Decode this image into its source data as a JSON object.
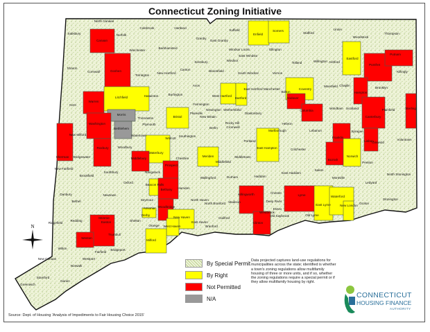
{
  "title": "Connecticut Zoning Initiative",
  "colors": {
    "special_permit": "#eef3d8",
    "by_right": "#ffff00",
    "not_permitted": "#ff0000",
    "na": "#999999",
    "border": "#4a5a4a"
  },
  "legend": [
    {
      "label": "By Special Permit",
      "status": "special_permit"
    },
    {
      "label": "By Right",
      "status": "by_right"
    },
    {
      "label": "Not Permitted",
      "status": "not_permitted"
    },
    {
      "label": "N/A",
      "status": "na"
    }
  ],
  "description": "Data projected captures land-use regulations for municipalities across the state; identified is whether a town's zoning regulations allow multifamily housing of three or more units, and if so, whether the zoning regulations require a special permit or if they allow multifamily housing by right.",
  "source": "Source: Dept. of Housing 'Analysis of Impediments to Fair Housing Choice 2015'",
  "compass_label": "N",
  "logo": {
    "line1": "CONNECTICUT",
    "line2": "HOUSING FINANCE",
    "line3": "AUTHORITY"
  },
  "towns": [
    [
      "North Canaan",
      "special_permit"
    ],
    [
      "Salisbury",
      "special_permit"
    ],
    [
      "Canaan",
      "not_permitted"
    ],
    [
      "Norfolk",
      "special_permit"
    ],
    [
      "Colebrook",
      "special_permit"
    ],
    [
      "Hartland",
      "special_permit"
    ],
    [
      "Suffield",
      "special_permit"
    ],
    [
      "Granby",
      "special_permit"
    ],
    [
      "East Granby",
      "special_permit"
    ],
    [
      "Windsor Locks",
      "special_permit"
    ],
    [
      "Enfield",
      "by_right"
    ],
    [
      "Somers",
      "by_right"
    ],
    [
      "Stafford",
      "special_permit"
    ],
    [
      "Union",
      "special_permit"
    ],
    [
      "Woodstock",
      "special_permit"
    ],
    [
      "Thompson",
      "special_permit"
    ],
    [
      "Sharon",
      "special_permit"
    ],
    [
      "Cornwall",
      "special_permit"
    ],
    [
      "Goshen",
      "not_permitted"
    ],
    [
      "Torrington",
      "special_permit"
    ],
    [
      "Winchester",
      "special_permit"
    ],
    [
      "Barkhamsted",
      "special_permit"
    ],
    [
      "New Hartford",
      "special_permit"
    ],
    [
      "Canton",
      "special_permit"
    ],
    [
      "Simsbury",
      "special_permit"
    ],
    [
      "Bloomfield",
      "special_permit"
    ],
    [
      "Windsor",
      "special_permit"
    ],
    [
      "East Windsor",
      "special_permit"
    ],
    [
      "Ellington",
      "special_permit"
    ],
    [
      "Tolland",
      "special_permit"
    ],
    [
      "Willington",
      "special_permit"
    ],
    [
      "Ashford",
      "special_permit"
    ],
    [
      "Eastford",
      "by_right"
    ],
    [
      "Pomfret",
      "not_permitted"
    ],
    [
      "Putnam",
      "not_permitted"
    ],
    [
      "Killingly",
      "special_permit"
    ],
    [
      "South Windsor",
      "special_permit"
    ],
    [
      "Vernon",
      "special_permit"
    ],
    [
      "Kent",
      "special_permit"
    ],
    [
      "Warren",
      "not_permitted"
    ],
    [
      "Litchfield",
      "by_right"
    ],
    [
      "Harwinton",
      "special_permit"
    ],
    [
      "Burlington",
      "special_permit"
    ],
    [
      "Avon",
      "special_permit"
    ],
    [
      "West Hartford",
      "by_right"
    ],
    [
      "Hartford",
      "by_right"
    ],
    [
      "East Hartford",
      "special_permit"
    ],
    [
      "Manchester",
      "special_permit"
    ],
    [
      "Bolton",
      "special_permit"
    ],
    [
      "Coventry",
      "by_right"
    ],
    [
      "Mansfield",
      "special_permit"
    ],
    [
      "Chaplin",
      "special_permit"
    ],
    [
      "Hampton",
      "not_permitted"
    ],
    [
      "Brooklyn",
      "special_permit"
    ],
    [
      "Farmington",
      "special_permit"
    ],
    [
      "Morris",
      "na"
    ],
    [
      "Washington",
      "not_permitted"
    ],
    [
      "Bethlehem",
      "na"
    ],
    [
      "Thomaston",
      "special_permit"
    ],
    [
      "Plymouth",
      "special_permit"
    ],
    [
      "Bristol",
      "by_right"
    ],
    [
      "Plainville",
      "special_permit"
    ],
    [
      "New Britain",
      "special_permit"
    ],
    [
      "Newington",
      "special_permit"
    ],
    [
      "Wethersfield",
      "special_permit"
    ],
    [
      "Rocky Hill",
      "special_permit"
    ],
    [
      "Glastonbury",
      "special_permit"
    ],
    [
      "Hebron",
      "special_permit"
    ],
    [
      "Andover",
      "not_permitted"
    ],
    [
      "Columbia",
      "not_permitted"
    ],
    [
      "Windham",
      "special_permit"
    ],
    [
      "Scotland",
      "special_permit"
    ],
    [
      "Canterbury",
      "not_permitted"
    ],
    [
      "Plainfield",
      "special_permit"
    ],
    [
      "Sterling",
      "not_permitted"
    ],
    [
      "New Milford",
      "special_permit"
    ],
    [
      "Sherman",
      "not_permitted"
    ],
    [
      "Roxbury",
      "not_permitted"
    ],
    [
      "Woodbury",
      "special_permit"
    ],
    [
      "Watertown",
      "special_permit"
    ],
    [
      "Wolcott",
      "special_permit"
    ],
    [
      "Southington",
      "special_permit"
    ],
    [
      "Berlin",
      "special_permit"
    ],
    [
      "Cromwell",
      "special_permit"
    ],
    [
      "Portland",
      "special_permit"
    ],
    [
      "East Hampton",
      "by_right"
    ],
    [
      "Marlborough",
      "special_permit"
    ],
    [
      "Lebanon",
      "special_permit"
    ],
    [
      "Franklin",
      "not_permitted"
    ],
    [
      "Sprague",
      "special_permit"
    ],
    [
      "Lisbon",
      "not_permitted"
    ],
    [
      "Griswold",
      "special_permit"
    ],
    [
      "Voluntown",
      "special_permit"
    ],
    [
      "Waterbury",
      "by_right"
    ],
    [
      "Middlebury",
      "not_permitted"
    ],
    [
      "Bridgewater",
      "special_permit"
    ],
    [
      "Cheshire",
      "special_permit"
    ],
    [
      "Meriden",
      "by_right"
    ],
    [
      "Middlefield",
      "special_permit"
    ],
    [
      "Middletown",
      "special_permit"
    ],
    [
      "Colchester",
      "special_permit"
    ],
    [
      "Bozrah",
      "not_permitted"
    ],
    [
      "Norwich",
      "by_right"
    ],
    [
      "Preston",
      "special_permit"
    ],
    [
      "New Fairfield",
      "special_permit"
    ],
    [
      "Brookfield",
      "special_permit"
    ],
    [
      "Southbury",
      "special_permit"
    ],
    [
      "Naugatuck",
      "special_permit"
    ],
    [
      "Prospect",
      "not_permitted"
    ],
    [
      "Wallingford",
      "special_permit"
    ],
    [
      "Durham",
      "special_permit"
    ],
    [
      "Haddam",
      "special_permit"
    ],
    [
      "East Haddam",
      "special_permit"
    ],
    [
      "Salem",
      "special_permit"
    ],
    [
      "Montville",
      "special_permit"
    ],
    [
      "Ledyard",
      "special_permit"
    ],
    [
      "North Stonington",
      "special_permit"
    ],
    [
      "Beacon Falls",
      "by_right"
    ],
    [
      "Oxford",
      "special_permit"
    ],
    [
      "Bethany",
      "not_permitted"
    ],
    [
      "Hamden",
      "special_permit"
    ],
    [
      "Danbury",
      "special_permit"
    ],
    [
      "Newtown",
      "special_permit"
    ],
    [
      "Bethel",
      "special_permit"
    ],
    [
      "Seymour",
      "special_permit"
    ],
    [
      "North Haven",
      "special_permit"
    ],
    [
      "North Branford",
      "special_permit"
    ],
    [
      "Killingworth",
      "not_permitted"
    ],
    [
      "Chester",
      "special_permit"
    ],
    [
      "Deep River",
      "special_permit"
    ],
    [
      "Lyme",
      "not_permitted"
    ],
    [
      "East Lyme",
      "by_right"
    ],
    [
      "Waterford",
      "by_right"
    ],
    [
      "New London",
      "by_right"
    ],
    [
      "Groton",
      "special_permit"
    ],
    [
      "Stonington",
      "special_permit"
    ],
    [
      "Woodbridge",
      "not_permitted"
    ],
    [
      "Ansonia",
      "special_permit"
    ],
    [
      "Derby",
      "by_right"
    ],
    [
      "Monroe",
      "special_permit"
    ],
    [
      "Madison",
      "special_permit"
    ],
    [
      "Essex",
      "special_permit"
    ],
    [
      "Old Saybrook",
      "special_permit"
    ],
    [
      "Old Lyme",
      "special_permit"
    ],
    [
      "Westbrook",
      "special_permit"
    ],
    [
      "Clinton",
      "not_permitted"
    ],
    [
      "Ridgefield",
      "special_permit"
    ],
    [
      "Redding",
      "special_permit"
    ],
    [
      "Easton",
      "not_permitted"
    ],
    [
      "Shelton",
      "special_permit"
    ],
    [
      "Orange",
      "special_permit"
    ],
    [
      "New Haven",
      "by_right"
    ],
    [
      "West Haven",
      "by_right"
    ],
    [
      "East Haven",
      "special_permit"
    ],
    [
      "Branford",
      "special_permit"
    ],
    [
      "Guilford",
      "special_permit"
    ],
    [
      "Trumbull",
      "special_permit"
    ],
    [
      "Milford",
      "by_right"
    ],
    [
      "Weston",
      "not_permitted"
    ],
    [
      "Wilton",
      "special_permit"
    ],
    [
      "Fairfield",
      "special_permit"
    ],
    [
      "Bridgeport",
      "special_permit"
    ],
    [
      "Westport",
      "special_permit"
    ],
    [
      "Norwalk",
      "special_permit"
    ],
    [
      "New Canaan",
      "special_permit"
    ],
    [
      "Stamford",
      "special_permit"
    ],
    [
      "Darien",
      "special_permit"
    ],
    [
      "Greenwich",
      "special_permit"
    ]
  ]
}
